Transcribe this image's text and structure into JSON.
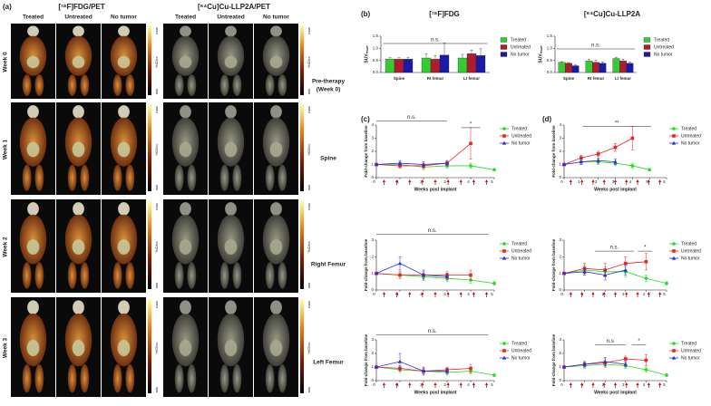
{
  "panel_a": {
    "label": "(a)",
    "tracers": [
      "[¹⁸F]FDG/PET",
      "[⁶⁴Cu]Cu-LLP2A/PET"
    ],
    "columns": [
      "Treated",
      "Untreated",
      "No tumor",
      "Treated",
      "Untreated",
      "No tumor"
    ],
    "weeks": [
      "Week 0",
      "Week 1",
      "Week 2",
      "Week 3"
    ],
    "scale": {
      "max": "max",
      "unit": "%ID/cc",
      "min": "min"
    }
  },
  "headers": {
    "b": "(b)",
    "c": "(c)",
    "d": "(d)",
    "fdg": "[¹⁸F]FDG",
    "llp": "[⁶⁴Cu]Cu-LLP2A"
  },
  "pre_therapy": [
    "Pre-therapy",
    "(Week 0)"
  ],
  "rows": [
    "Spine",
    "Right Femur",
    "Left Femur"
  ],
  "chart_data": [
    {
      "type": "bar",
      "y_label": "SUVₘₑₐₙ",
      "categories": [
        "Spine",
        "Rt femur",
        "Lt femur"
      ],
      "ylim": [
        0,
        1.5
      ],
      "yticks": [
        {
          "value": 0,
          "label": "0.0"
        },
        {
          "value": 0.5,
          "label": "0.5"
        },
        {
          "value": 1,
          "label": "1.0"
        },
        {
          "value": 1.5,
          "label": "1.5"
        }
      ],
      "annotations": [
        "n.s."
      ],
      "series": [
        {
          "name": "Treated",
          "color": "#33cc33",
          "values": [
            0.55,
            0.6,
            0.6
          ],
          "errors": [
            0.06,
            0.18,
            0.15
          ]
        },
        {
          "name": "Untreated",
          "color": "#b01c2e",
          "values": [
            0.55,
            0.55,
            0.78
          ],
          "errors": [
            0.06,
            0.15,
            0.15
          ]
        },
        {
          "name": "No tumor",
          "color": "#1a1aa8",
          "values": [
            0.55,
            0.72,
            0.7
          ],
          "errors": [
            0.08,
            0.5,
            0.28
          ]
        }
      ]
    },
    {
      "type": "bar",
      "y_label": "SUVₘₑₐₙ",
      "categories": [
        "Spine",
        "Rt femur",
        "Lt femur"
      ],
      "ylim": [
        0,
        1.5
      ],
      "yticks": [
        {
          "value": 0,
          "label": "0.0"
        },
        {
          "value": 0.5,
          "label": "0.5"
        },
        {
          "value": 1,
          "label": "1.0"
        },
        {
          "value": 1.5,
          "label": "1.5"
        }
      ],
      "annotations": [
        "n.s."
      ],
      "series": [
        {
          "name": "Treated",
          "color": "#33cc33",
          "values": [
            0.42,
            0.48,
            0.58
          ],
          "errors": [
            0.03,
            0.06,
            0.05
          ]
        },
        {
          "name": "Untreated",
          "color": "#b01c2e",
          "values": [
            0.38,
            0.42,
            0.48
          ],
          "errors": [
            0.03,
            0.08,
            0.07
          ]
        },
        {
          "name": "No tumor",
          "color": "#1a1aa8",
          "values": [
            0.28,
            0.38,
            0.38
          ],
          "errors": [
            0.03,
            0.05,
            0.05
          ]
        }
      ]
    },
    {
      "type": "line",
      "y_label": "Fold-change from baseline",
      "x_label": "Weeks post implant",
      "x": [
        0,
        1,
        2,
        3,
        4,
        5
      ],
      "xlim": [
        0,
        5
      ],
      "xticks": [
        0,
        1,
        2,
        3,
        4,
        5
      ],
      "ylim": [
        0,
        4
      ],
      "yticks": [
        0,
        1,
        2,
        3,
        4
      ],
      "annotations": [
        "n.s.",
        "*"
      ],
      "series": [
        {
          "name": "Treated",
          "color": "#22dd22",
          "marker": "circle",
          "values": [
            1,
            1,
            0.8,
            0.9,
            0.9,
            0.6
          ],
          "errors": [
            0,
            0.2,
            0.2,
            0.2,
            0.2,
            0.1
          ]
        },
        {
          "name": "Untreated",
          "color": "#ee2020",
          "marker": "square",
          "values": [
            1,
            0.9,
            0.9,
            1.1,
            2.6,
            null
          ],
          "errors": [
            0,
            0.2,
            0.2,
            0.2,
            1.2,
            null
          ]
        },
        {
          "name": "No tumor",
          "color": "#2a2ae0",
          "marker": "triangle",
          "values": [
            1,
            1.1,
            1.0,
            1.1,
            null,
            null
          ],
          "errors": [
            0,
            0.2,
            0.2,
            0.2,
            null,
            null
          ]
        }
      ]
    },
    {
      "type": "line",
      "y_label": "Fold-change from baseline",
      "x_label": "Weeks post implant",
      "x": [
        0,
        1,
        2,
        3,
        4,
        5
      ],
      "xlim": [
        0,
        6
      ],
      "xticks": [
        0,
        1,
        2,
        3,
        4,
        5,
        6
      ],
      "ylim": [
        0,
        4
      ],
      "yticks": [
        0,
        1,
        2,
        3,
        4
      ],
      "annotations": [
        "**"
      ],
      "series": [
        {
          "name": "Treated",
          "color": "#22dd22",
          "marker": "circle",
          "values": [
            1,
            1.2,
            1.2,
            1.1,
            0.9,
            0.6
          ],
          "errors": [
            0,
            0.2,
            0.2,
            0.2,
            0.2,
            0.1
          ]
        },
        {
          "name": "Untreated",
          "color": "#ee2020",
          "marker": "square",
          "values": [
            1,
            1.5,
            1.8,
            2.3,
            3.0,
            null
          ],
          "errors": [
            0,
            0.2,
            0.2,
            0.3,
            0.9,
            null
          ]
        },
        {
          "name": "No tumor",
          "color": "#2a2ae0",
          "marker": "triangle",
          "values": [
            1,
            1.2,
            1.3,
            1.2,
            null,
            null
          ],
          "errors": [
            0,
            0.2,
            0.2,
            0.2,
            null,
            null
          ]
        }
      ]
    },
    {
      "type": "line",
      "y_label": "Fold-change from baseline",
      "x": [
        0,
        1,
        2,
        3,
        4,
        5
      ],
      "xlim": [
        0,
        5
      ],
      "xticks": [
        0,
        1,
        2,
        3,
        4,
        5
      ],
      "ylim": [
        0,
        3
      ],
      "yticks": [
        0,
        1,
        2,
        3
      ],
      "annotations": [
        "n.s."
      ],
      "series": [
        {
          "name": "Treated",
          "color": "#22dd22",
          "marker": "circle",
          "values": [
            1,
            0.9,
            0.8,
            0.7,
            0.6,
            0.4
          ],
          "errors": [
            0,
            0.2,
            0.2,
            0.2,
            0.2,
            0.1
          ]
        },
        {
          "name": "Untreated",
          "color": "#ee2020",
          "marker": "square",
          "values": [
            1,
            0.9,
            0.9,
            0.9,
            0.9,
            null
          ],
          "errors": [
            0,
            0.2,
            0.2,
            0.2,
            0.3,
            null
          ]
        },
        {
          "name": "No tumor",
          "color": "#2a2ae0",
          "marker": "triangle",
          "values": [
            1,
            1.6,
            0.9,
            0.8,
            null,
            null
          ],
          "errors": [
            0,
            0.4,
            0.3,
            0.2,
            null,
            null
          ]
        }
      ]
    },
    {
      "type": "line",
      "y_label": "Fold-change from baseline",
      "x": [
        0,
        1,
        2,
        3,
        4,
        5
      ],
      "xlim": [
        0,
        5
      ],
      "xticks": [
        0,
        1,
        2,
        3,
        4,
        5
      ],
      "ylim": [
        0,
        3
      ],
      "yticks": [
        0,
        1,
        2,
        3
      ],
      "annotations": [
        "n.s.",
        "*"
      ],
      "series": [
        {
          "name": "Treated",
          "color": "#22dd22",
          "marker": "circle",
          "values": [
            1,
            1.2,
            1.1,
            1.1,
            0.7,
            0.4
          ],
          "errors": [
            0,
            0.3,
            0.3,
            0.3,
            0.2,
            0.1
          ]
        },
        {
          "name": "Untreated",
          "color": "#ee2020",
          "marker": "square",
          "values": [
            1,
            1.3,
            1.2,
            1.6,
            1.7,
            null
          ],
          "errors": [
            0,
            0.3,
            0.4,
            0.4,
            0.5,
            null
          ]
        },
        {
          "name": "No tumor",
          "color": "#2a2ae0",
          "marker": "triangle",
          "values": [
            1,
            1.1,
            0.9,
            1.2,
            null,
            null
          ],
          "errors": [
            0,
            0.2,
            0.3,
            0.3,
            null,
            null
          ]
        }
      ]
    },
    {
      "type": "line",
      "y_label": "Fold-change from baseline",
      "x_label": "Weeks post implant",
      "x": [
        0,
        1,
        2,
        3,
        4,
        5
      ],
      "xlim": [
        0,
        5
      ],
      "xticks": [
        0,
        1,
        2,
        3,
        4,
        5
      ],
      "ylim": [
        0,
        3
      ],
      "yticks": [
        0,
        1,
        2,
        3
      ],
      "annotations": [
        "n.s."
      ],
      "series": [
        {
          "name": "Treated",
          "color": "#22dd22",
          "marker": "circle",
          "values": [
            1,
            0.8,
            0.7,
            0.6,
            0.7,
            0.4
          ],
          "errors": [
            0,
            0.2,
            0.2,
            0.2,
            0.2,
            0.1
          ]
        },
        {
          "name": "Untreated",
          "color": "#ee2020",
          "marker": "square",
          "values": [
            1,
            0.9,
            0.7,
            0.8,
            0.9,
            null
          ],
          "errors": [
            0,
            0.2,
            0.2,
            0.2,
            0.3,
            null
          ]
        },
        {
          "name": "No tumor",
          "color": "#2a2ae0",
          "marker": "triangle",
          "values": [
            1,
            1.4,
            0.7,
            0.7,
            null,
            null
          ],
          "errors": [
            0,
            0.6,
            0.3,
            0.2,
            null,
            null
          ]
        }
      ]
    },
    {
      "type": "line",
      "y_label": "Fold-change from baseline",
      "x_label": "Weeks post implant",
      "x": [
        0,
        1,
        2,
        3,
        4,
        5
      ],
      "xlim": [
        0,
        5
      ],
      "xticks": [
        0,
        1,
        2,
        3,
        4,
        5
      ],
      "ylim": [
        0,
        3
      ],
      "yticks": [
        0,
        1,
        2,
        3
      ],
      "annotations": [
        "n.s",
        "*"
      ],
      "series": [
        {
          "name": "Treated",
          "color": "#22dd22",
          "marker": "circle",
          "values": [
            1,
            1.1,
            1.2,
            1.1,
            0.8,
            0.4
          ],
          "errors": [
            0,
            0.2,
            0.2,
            0.2,
            0.2,
            0.1
          ]
        },
        {
          "name": "Untreated",
          "color": "#ee2020",
          "marker": "square",
          "values": [
            1,
            1.2,
            1.3,
            1.6,
            1.5,
            null
          ],
          "errors": [
            0,
            0.2,
            0.3,
            0.2,
            0.4,
            null
          ]
        },
        {
          "name": "No tumor",
          "color": "#2a2ae0",
          "marker": "triangle",
          "values": [
            1,
            1.2,
            1.4,
            1.2,
            null,
            null
          ],
          "errors": [
            0,
            0.2,
            0.3,
            0.2,
            null,
            null
          ]
        }
      ]
    }
  ]
}
